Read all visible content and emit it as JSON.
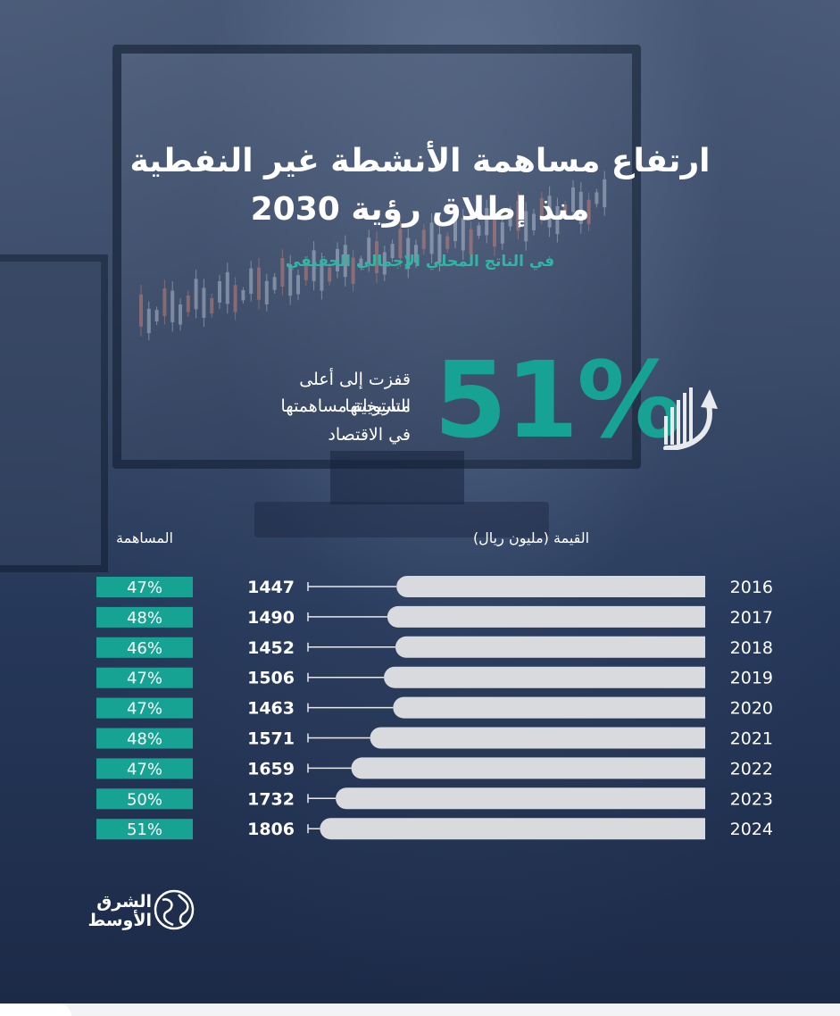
{
  "title_line1": "ارتفاع مساهمة الأنشطة غير النفطية",
  "title_line2": "منذ إطلاق رؤية 2030",
  "subtitle": "في الناتج المحلي الإجمالي الحقيقي",
  "highlight": {
    "value": "51%",
    "description_line1": "قفزت إلى أعلى مستوياتها",
    "description_line2": "التاريخية مساهمتها",
    "description_line3": "في الاقتصاد",
    "icon": "growth-bars-arrow-icon"
  },
  "headers": {
    "value": "القيمة (مليون ريال)",
    "contribution": "المساهمة"
  },
  "colors": {
    "accent": "#17a394",
    "bar": "#d9dade",
    "title": "#ffffff",
    "subtitle": "#2fb7a6"
  },
  "chart_data": {
    "type": "bar",
    "orientation": "horizontal",
    "categories": [
      "2016",
      "2017",
      "2018",
      "2019",
      "2020",
      "2021",
      "2022",
      "2023",
      "2024"
    ],
    "values": [
      1447,
      1490,
      1452,
      1506,
      1463,
      1571,
      1659,
      1732,
      1806
    ],
    "value_labels": [
      "1447",
      "1490",
      "1452",
      "1506",
      "1463",
      "1571",
      "1659",
      "1732",
      "1806"
    ],
    "contribution": [
      "47%",
      "48%",
      "46%",
      "47%",
      "47%",
      "48%",
      "47%",
      "50%",
      "51%"
    ]
  },
  "logo": {
    "line1": "الشرق",
    "line2": "الأوسط",
    "icon": "globe-logo-icon"
  }
}
